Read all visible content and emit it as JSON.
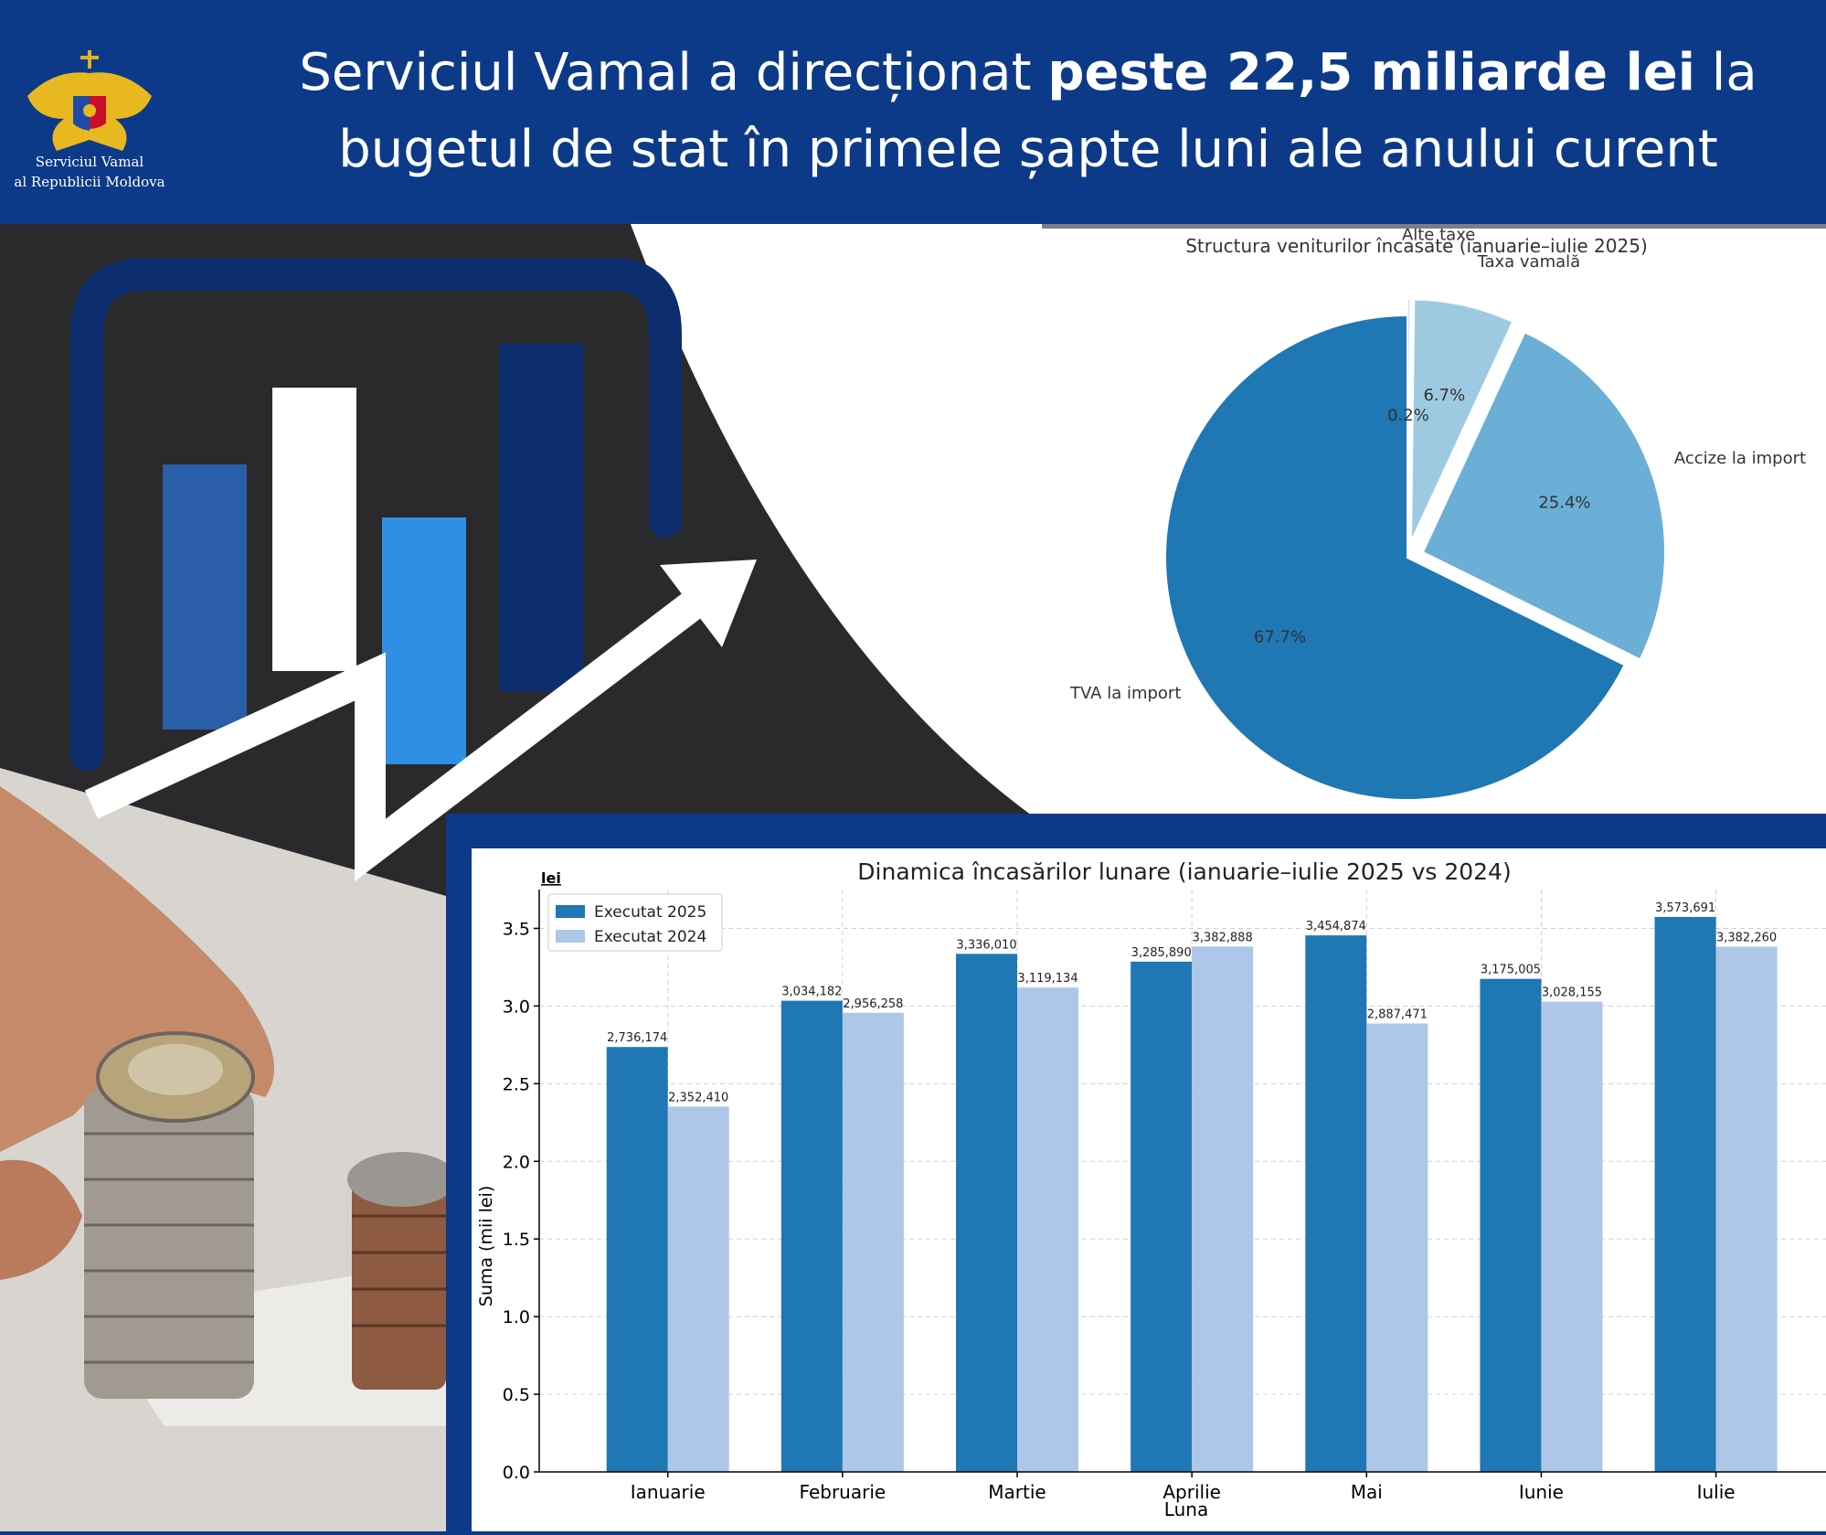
{
  "header": {
    "org_line1": "Serviciul Vamal",
    "org_line2": "al Republicii Moldova",
    "headline_part1": "Serviciul Vamal a direcționat ",
    "headline_bold": "peste 22,5 miliarde lei",
    "headline_part2": " la",
    "headline_line2": "bugetul de stat în primele șapte luni ale anului curent"
  },
  "colors": {
    "header_bg": "#0d3a88",
    "series_2025": "#1f77b4",
    "series_2024": "#aec7e8",
    "pie": [
      "#1f77b4",
      "#6baed6",
      "#9ecae1",
      "#c6dbef"
    ]
  },
  "chart_data": [
    {
      "type": "pie",
      "title": "Structura veniturilor încasate (ianuarie–iulie 2025)",
      "labels": [
        "TVA la import",
        "Accize la import",
        "Taxa vamală",
        "Alte taxe"
      ],
      "values": [
        67.7,
        25.4,
        6.7,
        0.2
      ],
      "value_labels": [
        "67.7%",
        "25.4%",
        "6.7%",
        "0.2%"
      ],
      "exploded": [
        false,
        true,
        true,
        true
      ]
    },
    {
      "type": "bar",
      "title": "Dinamica încasărilor lunare (ianuarie–iulie 2025 vs 2024)",
      "xlabel": "Luna",
      "ylabel": "Suma (mii lei)",
      "y_unit_label": "lei",
      "ylim": [
        0,
        3.75
      ],
      "yticks": [
        "0.0",
        "0.5",
        "1.0",
        "1.5",
        "2.0",
        "2.5",
        "3.0",
        "3.5"
      ],
      "grid": true,
      "legend_position": "top-left",
      "categories": [
        "Ianuarie",
        "Februarie",
        "Martie",
        "Aprilie",
        "Mai",
        "Iunie",
        "Iulie"
      ],
      "series": [
        {
          "name": "Executat 2025",
          "values": [
            2.736174,
            3.034182,
            3.33601,
            3.28589,
            3.454874,
            3.175005,
            3.573691
          ],
          "value_labels": [
            "2,736,174",
            "3,034,182",
            "3,336,010",
            "3,285,890",
            "3,454,874",
            "3,175,005",
            "3,573,691"
          ]
        },
        {
          "name": "Executat 2024",
          "values": [
            2.35241,
            2.956258,
            3.119134,
            3.382888,
            2.887471,
            3.028155,
            3.38226
          ],
          "value_labels": [
            "2,352,410",
            "2,956,258",
            "3,119,134",
            "3,382,888",
            "2,887,471",
            "3,028,155",
            "3,382,260"
          ]
        }
      ]
    }
  ]
}
